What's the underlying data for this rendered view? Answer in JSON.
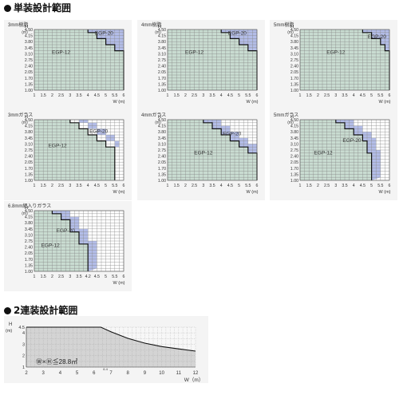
{
  "sections": {
    "single_title": "単装設計範囲",
    "double_title": "2連装設計範囲"
  },
  "colors": {
    "green_fill": "#c9dcd1",
    "blue_fill": "#b3bde8",
    "grid_line": "#888888",
    "bottom_fill": "#d4d4d4"
  },
  "chart_data": [
    {
      "type": "area",
      "title": "3mm樹脂",
      "xlabel": "W (m)",
      "ylabel": "H (m)",
      "xticks": [
        "1",
        "1.5",
        "2",
        "2.5",
        "3",
        "3.5",
        "4",
        "4.5",
        "5",
        "5.5",
        "6"
      ],
      "yticks": [
        "1.00",
        "1.35",
        "1.70",
        "2.05",
        "2.40",
        "2.75",
        "3.10",
        "3.45",
        "3.80",
        "4.15",
        "4.50"
      ],
      "series": [
        {
          "name": "EGP-12",
          "label": "EGP-12",
          "cells": 100,
          "boundary": [
            [
              4.0,
              4.5
            ],
            [
              4.0,
              4.325
            ],
            [
              4.5,
              4.325
            ],
            [
              4.5,
              3.975
            ],
            [
              5.0,
              3.975
            ],
            [
              5.0,
              3.625
            ],
            [
              5.5,
              3.625
            ],
            [
              5.5,
              3.275
            ],
            [
              6.0,
              3.275
            ],
            [
              6.0,
              1.0
            ]
          ]
        },
        {
          "name": "EGP-20",
          "label": "EGP-20",
          "boundary": [
            [
              6.0,
              4.5
            ],
            [
              6.0,
              3.275
            ],
            [
              5.5,
              3.275
            ],
            [
              5.5,
              3.625
            ],
            [
              5.0,
              3.625
            ],
            [
              5.0,
              3.975
            ],
            [
              4.5,
              3.975
            ],
            [
              4.5,
              4.325
            ],
            [
              4.0,
              4.325
            ],
            [
              4.0,
              4.5
            ]
          ]
        }
      ],
      "label_positions": {
        "EGP-12": [
          2.5,
          3.1
        ],
        "EGP-20": [
          4.9,
          4.2
        ]
      }
    },
    {
      "type": "area",
      "title": "4mm樹脂",
      "xlabel": "W (m)",
      "ylabel": "H (m)",
      "xticks": [
        "1",
        "1.5",
        "2",
        "2.5",
        "3",
        "3.5",
        "4",
        "4.5",
        "5",
        "5.5",
        "6"
      ],
      "yticks": [
        "1.00",
        "1.35",
        "1.70",
        "2.05",
        "2.40",
        "2.75",
        "3.10",
        "3.45",
        "3.80",
        "4.15",
        "4.50"
      ],
      "series": [
        {
          "name": "EGP-12",
          "label": "EGP-12",
          "boundary": [
            [
              4.0,
              4.5
            ],
            [
              4.0,
              4.325
            ],
            [
              4.5,
              4.325
            ],
            [
              4.5,
              3.975
            ],
            [
              5.0,
              3.975
            ],
            [
              5.0,
              3.625
            ],
            [
              5.5,
              3.625
            ],
            [
              5.5,
              3.275
            ],
            [
              6.0,
              3.275
            ],
            [
              6.0,
              1.0
            ]
          ]
        },
        {
          "name": "EGP-20",
          "label": "EGP-20",
          "boundary": [
            [
              6.0,
              4.5
            ],
            [
              6.0,
              3.275
            ],
            [
              5.5,
              3.275
            ],
            [
              5.5,
              3.625
            ],
            [
              5.0,
              3.625
            ],
            [
              5.0,
              3.975
            ],
            [
              4.5,
              3.975
            ],
            [
              4.5,
              4.325
            ],
            [
              4.0,
              4.325
            ],
            [
              4.0,
              4.5
            ]
          ]
        }
      ],
      "label_positions": {
        "EGP-12": [
          2.5,
          3.1
        ],
        "EGP-20": [
          4.9,
          4.2
        ]
      }
    },
    {
      "type": "area",
      "title": "5mm樹脂",
      "xlabel": "W (m)",
      "ylabel": "H (m)",
      "xticks": [
        "1",
        "1.5",
        "2",
        "2.5",
        "3",
        "3.5",
        "4",
        "4.5",
        "5",
        "5.5",
        "6"
      ],
      "yticks": [
        "1.00",
        "1.35",
        "1.70",
        "2.05",
        "2.40",
        "2.75",
        "3.10",
        "3.45",
        "3.80",
        "4.15",
        "4.50"
      ],
      "series": [
        {
          "name": "EGP-12",
          "label": "EGP-12",
          "boundary": [
            [
              4.5,
              4.5
            ],
            [
              4.5,
              4.325
            ],
            [
              5.0,
              4.325
            ],
            [
              5.0,
              3.975
            ],
            [
              5.5,
              3.975
            ],
            [
              5.5,
              3.625
            ],
            [
              5.75,
              3.625
            ],
            [
              5.75,
              3.275
            ],
            [
              6.0,
              3.275
            ],
            [
              6.0,
              1.0
            ]
          ]
        },
        {
          "name": "EGP-20",
          "label": "EGP-20",
          "boundary": [
            [
              6.0,
              4.5
            ],
            [
              6.0,
              3.275
            ],
            [
              5.75,
              3.275
            ],
            [
              5.75,
              3.625
            ],
            [
              5.5,
              3.625
            ],
            [
              5.5,
              3.975
            ],
            [
              5.0,
              3.975
            ],
            [
              5.0,
              4.325
            ],
            [
              4.5,
              4.325
            ],
            [
              4.5,
              4.5
            ]
          ]
        }
      ],
      "white_tr": true,
      "label_positions": {
        "EGP-12": [
          3.0,
          3.1
        ],
        "EGP-20": [
          5.3,
          4.0
        ]
      }
    },
    {
      "type": "area",
      "title": "3mmガラス",
      "xlabel": "W (m)",
      "ylabel": "H (m)",
      "xticks": [
        "1",
        "1.5",
        "2",
        "2.5",
        "3",
        "3.5",
        "4",
        "4.5",
        "5",
        "5.5",
        "6"
      ],
      "yticks": [
        "1.00",
        "1.35",
        "1.70",
        "2.05",
        "2.40",
        "2.75",
        "3.10",
        "3.45",
        "3.80",
        "4.15",
        "4.50"
      ],
      "series": [
        {
          "name": "EGP-12",
          "label": "EGP-12",
          "boundary": [
            [
              3.0,
              4.5
            ],
            [
              3.0,
              4.325
            ],
            [
              3.5,
              4.325
            ],
            [
              3.5,
              3.975
            ],
            [
              4.0,
              3.975
            ],
            [
              4.0,
              3.625
            ],
            [
              4.5,
              3.625
            ],
            [
              4.5,
              3.275
            ],
            [
              5.0,
              3.275
            ],
            [
              5.0,
              2.925
            ],
            [
              5.5,
              2.925
            ],
            [
              5.5,
              1.0
            ]
          ]
        },
        {
          "name": "EGP-20",
          "label": "EGP-20",
          "boundary": [
            [
              4.0,
              4.5
            ],
            [
              4.0,
              4.325
            ],
            [
              4.5,
              4.325
            ],
            [
              4.5,
              3.975
            ],
            [
              5.0,
              3.975
            ],
            [
              5.0,
              3.625
            ],
            [
              5.5,
              3.625
            ],
            [
              5.5,
              3.275
            ],
            [
              5.75,
              3.275
            ],
            [
              5.75,
              2.925
            ],
            [
              5.5,
              2.925
            ],
            [
              5.5,
              3.275
            ],
            [
              5.0,
              3.275
            ],
            [
              5.0,
              3.625
            ],
            [
              4.5,
              3.625
            ],
            [
              4.5,
              3.975
            ],
            [
              4.0,
              3.975
            ],
            [
              4.0,
              4.325
            ],
            [
              3.5,
              4.325
            ],
            [
              3.5,
              4.5
            ]
          ]
        }
      ],
      "label_positions": {
        "EGP-12": [
          2.3,
          2.9
        ],
        "EGP-20": [
          4.6,
          3.75
        ]
      }
    },
    {
      "type": "area",
      "title": "4mmガラス",
      "xlabel": "W (m)",
      "ylabel": "H (m)",
      "xticks": [
        "1",
        "1.5",
        "2",
        "2.5",
        "3",
        "3.5",
        "4",
        "4.5",
        "5",
        "5.5",
        "6"
      ],
      "yticks": [
        "1.00",
        "1.35",
        "1.70",
        "2.05",
        "2.40",
        "2.75",
        "3.10",
        "3.45",
        "3.80",
        "4.15",
        "4.50"
      ],
      "series": [
        {
          "name": "EGP-12",
          "label": "EGP-12",
          "boundary": [
            [
              3.0,
              4.5
            ],
            [
              3.0,
              4.325
            ],
            [
              3.5,
              4.325
            ],
            [
              3.5,
              3.975
            ],
            [
              4.0,
              3.975
            ],
            [
              4.0,
              3.625
            ],
            [
              4.5,
              3.625
            ],
            [
              4.5,
              3.275
            ],
            [
              5.0,
              3.275
            ],
            [
              5.0,
              2.925
            ],
            [
              5.5,
              2.925
            ],
            [
              5.5,
              2.575
            ],
            [
              6.0,
              2.575
            ],
            [
              6.0,
              1.0
            ]
          ]
        },
        {
          "name": "EGP-20",
          "label": "EGP-20",
          "boundary": []
        }
      ],
      "label_positions": {
        "EGP-12": [
          3.0,
          2.5
        ],
        "EGP-20": [
          4.6,
          3.6
        ]
      }
    },
    {
      "type": "area",
      "title": "5mmガラス",
      "xlabel": "W (m)",
      "ylabel": "H (m)",
      "xticks": [
        "1",
        "1.5",
        "2",
        "2.5",
        "3",
        "3.5",
        "4",
        "4.5",
        "5",
        "5.5",
        "6"
      ],
      "yticks": [
        "1.00",
        "1.35",
        "1.70",
        "2.05",
        "2.40",
        "2.75",
        "3.10",
        "3.45",
        "3.80",
        "4.15",
        "4.50"
      ],
      "series": [
        {
          "name": "EGP-12",
          "label": "EGP-12",
          "boundary": [
            [
              3.0,
              4.5
            ],
            [
              3.0,
              4.325
            ],
            [
              3.5,
              4.325
            ],
            [
              3.5,
              3.975
            ],
            [
              4.0,
              3.975
            ],
            [
              4.0,
              3.625
            ],
            [
              4.5,
              3.625
            ],
            [
              4.5,
              3.275
            ],
            [
              4.75,
              3.275
            ],
            [
              4.75,
              2.575
            ],
            [
              5.0,
              2.575
            ],
            [
              5.0,
              1.0
            ]
          ]
        },
        {
          "name": "EGP-20",
          "label": "EGP-20",
          "boundary": []
        }
      ],
      "label_positions": {
        "EGP-12": [
          2.3,
          2.5
        ],
        "EGP-20": [
          3.9,
          3.2
        ]
      }
    },
    {
      "type": "area",
      "title": "6.8mm網入りガラス",
      "xlabel": "W (m)",
      "ylabel": "H (m)",
      "xticks": [
        "1",
        "1.5",
        "2",
        "2.5",
        "3",
        "3.5",
        "4",
        "4.5",
        "5",
        "5.5",
        "6"
      ],
      "xtick_labels_override": {
        "4": "4.2",
        "4.5": "4.5"
      },
      "yticks": [
        "1.00",
        "1.35",
        "1.70",
        "2.05",
        "2.40",
        "2.75",
        "3.10",
        "3.45",
        "3.80",
        "4.15",
        "4.50"
      ],
      "series": [
        {
          "name": "EGP-12",
          "label": "EGP-12",
          "boundary": [
            [
              2.0,
              4.5
            ],
            [
              2.0,
              4.325
            ],
            [
              2.5,
              4.325
            ],
            [
              2.5,
              3.975
            ],
            [
              3.0,
              3.975
            ],
            [
              3.0,
              3.275
            ],
            [
              3.5,
              3.275
            ],
            [
              3.5,
              2.575
            ],
            [
              4.0,
              2.575
            ],
            [
              4.0,
              1.0
            ]
          ]
        },
        {
          "name": "EGP-20",
          "label": "EGP-20",
          "boundary": []
        }
      ],
      "label_positions": {
        "EGP-12": [
          1.9,
          2.4
        ],
        "EGP-20": [
          2.75,
          3.25
        ]
      }
    },
    {
      "type": "area",
      "title": "",
      "xlabel": "W（m）",
      "ylabel": "H（m）",
      "xticks": [
        "2",
        "3",
        "4",
        "5",
        "6",
        "7",
        "8",
        "9",
        "10",
        "11",
        "12"
      ],
      "extra_xtick": "6.4",
      "yticks": [
        "1",
        "2",
        "3",
        "4",
        "4.5"
      ],
      "boundary": [
        [
          2,
          4.5
        ],
        [
          6.4,
          4.5
        ],
        [
          7,
          4.1
        ],
        [
          8,
          3.52
        ],
        [
          9,
          3.1
        ],
        [
          10,
          2.8
        ],
        [
          11,
          2.6
        ],
        [
          12,
          2.4
        ]
      ],
      "annotation": "Ⓦ×Ⓗ≦28.8㎡"
    }
  ]
}
